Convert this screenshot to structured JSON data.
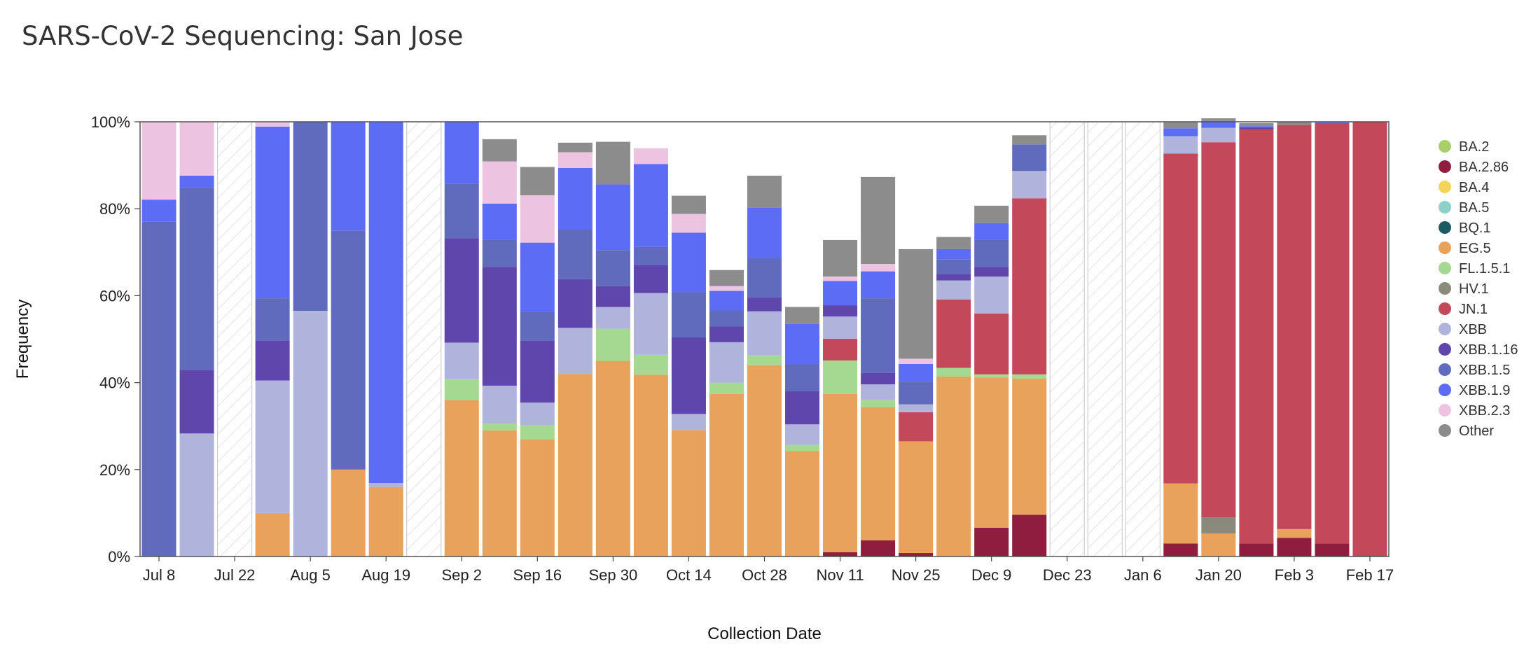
{
  "chart_data": {
    "type": "bar",
    "stacked": true,
    "title": "SARS-CoV-2 Sequencing: San Jose",
    "xlabel": "Collection Date",
    "ylabel": "Frequency",
    "ylim": [
      0,
      100
    ],
    "y_ticks": [
      "0%",
      "20%",
      "40%",
      "60%",
      "80%",
      "100%"
    ],
    "x_tick_labels": [
      "Jul 8",
      "Jul 22",
      "Aug 5",
      "Aug 19",
      "Sep 2",
      "Sep 16",
      "Sep 30",
      "Oct 14",
      "Oct 28",
      "Nov 11",
      "Nov 25",
      "Dec 9",
      "Dec 23",
      "Jan 6",
      "Jan 20",
      "Feb 3",
      "Feb 17"
    ],
    "categories": [
      "Jul 8",
      "Jul 15",
      "Jul 22",
      "Jul 29",
      "Aug 5",
      "Aug 12",
      "Aug 19",
      "Aug 26",
      "Sep 2",
      "Sep 9",
      "Sep 16",
      "Sep 23",
      "Sep 30",
      "Oct 7",
      "Oct 14",
      "Oct 21",
      "Oct 28",
      "Nov 4",
      "Nov 11",
      "Nov 18",
      "Nov 25",
      "Dec 2",
      "Dec 9",
      "Dec 16",
      "Dec 23",
      "Dec 30",
      "Jan 6",
      "Jan 13",
      "Jan 20",
      "Jan 27",
      "Feb 3",
      "Feb 10",
      "Feb 17"
    ],
    "no_data_weeks": [
      "Jul 22",
      "Aug 26",
      "Dec 23",
      "Dec 30",
      "Jan 6"
    ],
    "colors": {
      "BA.2": "#a8cf6b",
      "BA.2.86": "#8e1d3f",
      "BA.4": "#f5d45b",
      "BA.5": "#8cd0c7",
      "BQ.1": "#1e5a63",
      "EG.5": "#e9a25c",
      "FL.1.5.1": "#a5d891",
      "HV.1": "#8a8a7c",
      "JN.1": "#c3485a",
      "XBB": "#b0b4dc",
      "XBB.1.16": "#5f46ad",
      "XBB.1.5": "#616bbd",
      "XBB.1.9": "#5c6cf5",
      "XBB.2.3": "#ecc4e2",
      "Other": "#8c8c8c"
    },
    "series": [
      {
        "name": "BA.2",
        "values": [
          0,
          0,
          0,
          0,
          0,
          0,
          0,
          0,
          0,
          0,
          0,
          0,
          0,
          0,
          0,
          0,
          0,
          0,
          0,
          0,
          0,
          0,
          0,
          0,
          0,
          0,
          0,
          0,
          0,
          0,
          0,
          0,
          0
        ]
      },
      {
        "name": "BA.2.86",
        "values": [
          0,
          0,
          0,
          0,
          0,
          0,
          0,
          0,
          0,
          0,
          0,
          0,
          0,
          0,
          0,
          0,
          0,
          0,
          1,
          3.7,
          0.8,
          0,
          6.6,
          9.6,
          0,
          0,
          0,
          3,
          0,
          3,
          4.3,
          3,
          0
        ]
      },
      {
        "name": "BA.4",
        "values": [
          0,
          0,
          0,
          0,
          0,
          0,
          0,
          0,
          0,
          0,
          0,
          0,
          0,
          0,
          0,
          0,
          0,
          0,
          0,
          0,
          0,
          0,
          0,
          0,
          0,
          0,
          0,
          0,
          0,
          0,
          0,
          0,
          0
        ]
      },
      {
        "name": "BA.5",
        "values": [
          0,
          0,
          0,
          0,
          0,
          0,
          0,
          0,
          0,
          0,
          0,
          0,
          0,
          0,
          0,
          0,
          0,
          0,
          0,
          0,
          0,
          0,
          0,
          0,
          0,
          0,
          0,
          0,
          0,
          0,
          0,
          0,
          0
        ]
      },
      {
        "name": "BQ.1",
        "values": [
          0,
          0,
          0,
          0,
          0,
          0,
          0,
          0,
          0,
          0,
          0,
          0,
          0,
          0,
          0,
          0,
          0,
          0,
          0,
          0,
          0,
          0,
          0,
          0,
          0,
          0,
          0,
          0,
          0,
          0,
          0,
          0,
          0
        ]
      },
      {
        "name": "EG.5",
        "values": [
          0,
          0,
          0,
          10,
          0,
          20,
          16,
          0,
          36,
          29,
          27,
          42,
          45,
          41.8,
          29.1,
          37.4,
          44,
          24.3,
          36.4,
          30.6,
          25.7,
          41.4,
          34.6,
          31.3,
          0,
          0,
          0,
          13.8,
          5.3,
          0,
          2,
          0,
          0
        ]
      },
      {
        "name": "FL.1.5.1",
        "values": [
          0,
          0,
          0,
          0,
          0,
          0,
          0,
          0,
          4.8,
          1.5,
          3.2,
          0,
          7.4,
          4.6,
          0,
          2.6,
          2.3,
          1.4,
          7.7,
          1.7,
          0,
          2,
          0.7,
          1,
          0,
          0,
          0,
          0,
          0,
          0,
          0,
          0,
          0
        ]
      },
      {
        "name": "HV.1",
        "values": [
          0,
          0,
          0,
          0,
          0,
          0,
          0,
          0,
          0,
          0,
          0,
          0,
          0,
          0,
          0,
          0,
          0,
          0,
          0,
          0,
          0,
          0,
          0,
          0,
          0,
          0,
          0,
          0,
          3.7,
          0,
          0,
          0,
          0
        ]
      },
      {
        "name": "JN.1",
        "values": [
          0,
          0,
          0,
          0,
          0,
          0,
          0,
          0,
          0,
          0,
          0,
          0,
          0,
          0,
          0,
          0,
          0,
          0,
          5,
          0,
          6.7,
          15.7,
          14,
          40.5,
          0,
          0,
          0,
          75.9,
          86.3,
          95.2,
          93,
          96.7,
          100
        ]
      },
      {
        "name": "XBB",
        "values": [
          0,
          28.3,
          0,
          30.5,
          56.5,
          0,
          0.9,
          0,
          8.4,
          8.8,
          5.2,
          10.6,
          5,
          14.2,
          3.7,
          9.3,
          10.1,
          4.7,
          5.1,
          3.6,
          1.8,
          4.4,
          8.5,
          6.3,
          0,
          0,
          0,
          4,
          3.3,
          0,
          0,
          0,
          0
        ]
      },
      {
        "name": "XBB.1.16",
        "values": [
          0,
          14.6,
          0,
          9.2,
          0,
          0,
          0,
          0,
          24,
          27.3,
          14.3,
          11.2,
          4.8,
          6.5,
          17.6,
          3.6,
          3.1,
          7.6,
          2.6,
          2.6,
          0,
          1.5,
          2.2,
          0,
          0,
          0,
          0,
          0,
          0,
          0.5,
          0,
          0,
          0
        ]
      },
      {
        "name": "XBB.1.5",
        "values": [
          77,
          42.1,
          0,
          9.7,
          43.5,
          55,
          0,
          0,
          12.6,
          6.2,
          6.8,
          11.4,
          8.3,
          4.1,
          10.4,
          3.7,
          9.1,
          6.2,
          0,
          17.2,
          5.2,
          3.4,
          6.2,
          6.1,
          0,
          0,
          0,
          0,
          0,
          0,
          0,
          0,
          0
        ]
      },
      {
        "name": "XBB.1.9",
        "values": [
          5.1,
          2.6,
          0,
          39.5,
          0,
          25,
          83.1,
          0,
          14.3,
          8.4,
          15.7,
          14.2,
          15.1,
          19.1,
          13.7,
          4.5,
          11.6,
          9.3,
          5.6,
          6.2,
          4.1,
          2.3,
          3.9,
          0,
          0,
          0,
          0,
          1.8,
          1.6,
          0.3,
          0,
          0.3,
          0
        ]
      },
      {
        "name": "XBB.2.3",
        "values": [
          17.9,
          12.4,
          0,
          1.1,
          0,
          0,
          0,
          0,
          0,
          9.7,
          10.9,
          3.6,
          0,
          3.6,
          4.3,
          1.1,
          0,
          0,
          1,
          1.7,
          1.2,
          0,
          0,
          0,
          0,
          0,
          0,
          0,
          0,
          0,
          0,
          0,
          0
        ]
      },
      {
        "name": "Other",
        "values": [
          0,
          0,
          0,
          0,
          0,
          0,
          0,
          0,
          0,
          5.1,
          6.5,
          2.2,
          9.8,
          0,
          4.2,
          3.7,
          7.4,
          3.9,
          8.4,
          20,
          25.2,
          2.8,
          4,
          2.1,
          0,
          0,
          0,
          1.4,
          0.6,
          0.7,
          0.7,
          0,
          0
        ]
      }
    ]
  }
}
